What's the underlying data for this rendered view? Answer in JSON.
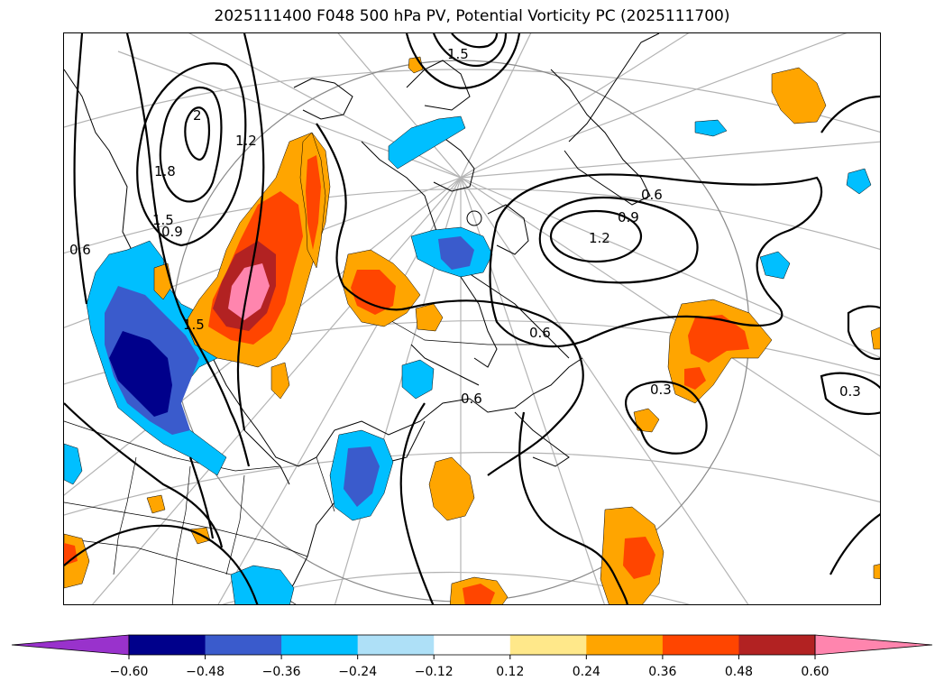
{
  "title": "2025111400 F048 500 hPa PV, Potential Vorticity PC (2025111700)",
  "colorbar": {
    "ticks": [
      "−0.60",
      "−0.48",
      "−0.36",
      "−0.24",
      "−0.12",
      "0.12",
      "0.24",
      "0.36",
      "0.48",
      "0.60"
    ],
    "colors": [
      "#9932cc",
      "#00008b",
      "#3a5bcc",
      "#00bfff",
      "#aee0f7",
      "#ffffff",
      "#ffe88a",
      "#ffa500",
      "#ff4500",
      "#b22222",
      "#ff85ae"
    ]
  },
  "contour_labels": {
    "c1": "0.6",
    "c2": "0.9",
    "c3": "1.2",
    "c4": "0.6",
    "c5": "0.3",
    "c6": "0.3",
    "c7": "0.6",
    "c8": "1.5",
    "c9": "1.8",
    "c10": "2",
    "c11": "1.2",
    "c12": "1.5",
    "c13": "1.5",
    "c14": "0.9",
    "c15": "0.6"
  }
}
